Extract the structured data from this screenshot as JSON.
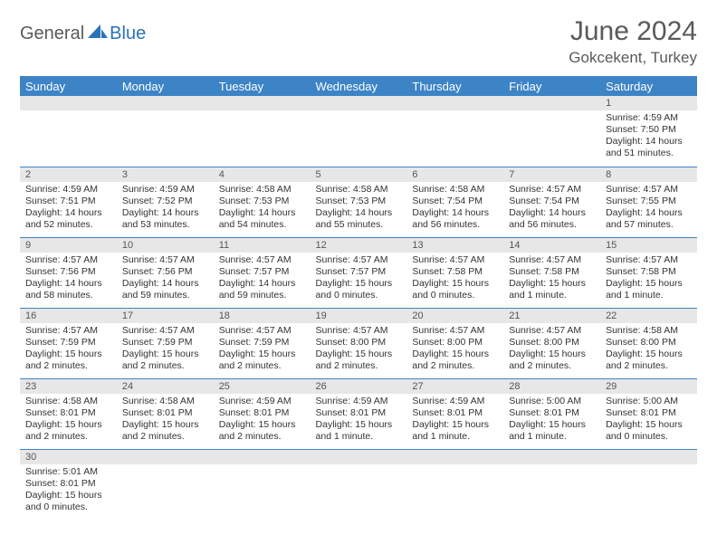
{
  "logo": {
    "general": "General",
    "blue": "Blue",
    "sail_color": "#2a73b8"
  },
  "title": "June 2024",
  "location": "Gokcekent, Turkey",
  "colors": {
    "header_bg": "#3d84c6",
    "header_text": "#ffffff",
    "daynum_bg": "#e7e7e7",
    "row_divider": "#3d84c6",
    "text": "#333333",
    "title_text": "#5a5a5a"
  },
  "day_headers": [
    "Sunday",
    "Monday",
    "Tuesday",
    "Wednesday",
    "Thursday",
    "Friday",
    "Saturday"
  ],
  "weeks": [
    [
      {
        "n": "",
        "sr": "",
        "ss": "",
        "dl": ""
      },
      {
        "n": "",
        "sr": "",
        "ss": "",
        "dl": ""
      },
      {
        "n": "",
        "sr": "",
        "ss": "",
        "dl": ""
      },
      {
        "n": "",
        "sr": "",
        "ss": "",
        "dl": ""
      },
      {
        "n": "",
        "sr": "",
        "ss": "",
        "dl": ""
      },
      {
        "n": "",
        "sr": "",
        "ss": "",
        "dl": ""
      },
      {
        "n": "1",
        "sr": "Sunrise: 4:59 AM",
        "ss": "Sunset: 7:50 PM",
        "dl": "Daylight: 14 hours and 51 minutes."
      }
    ],
    [
      {
        "n": "2",
        "sr": "Sunrise: 4:59 AM",
        "ss": "Sunset: 7:51 PM",
        "dl": "Daylight: 14 hours and 52 minutes."
      },
      {
        "n": "3",
        "sr": "Sunrise: 4:59 AM",
        "ss": "Sunset: 7:52 PM",
        "dl": "Daylight: 14 hours and 53 minutes."
      },
      {
        "n": "4",
        "sr": "Sunrise: 4:58 AM",
        "ss": "Sunset: 7:53 PM",
        "dl": "Daylight: 14 hours and 54 minutes."
      },
      {
        "n": "5",
        "sr": "Sunrise: 4:58 AM",
        "ss": "Sunset: 7:53 PM",
        "dl": "Daylight: 14 hours and 55 minutes."
      },
      {
        "n": "6",
        "sr": "Sunrise: 4:58 AM",
        "ss": "Sunset: 7:54 PM",
        "dl": "Daylight: 14 hours and 56 minutes."
      },
      {
        "n": "7",
        "sr": "Sunrise: 4:57 AM",
        "ss": "Sunset: 7:54 PM",
        "dl": "Daylight: 14 hours and 56 minutes."
      },
      {
        "n": "8",
        "sr": "Sunrise: 4:57 AM",
        "ss": "Sunset: 7:55 PM",
        "dl": "Daylight: 14 hours and 57 minutes."
      }
    ],
    [
      {
        "n": "9",
        "sr": "Sunrise: 4:57 AM",
        "ss": "Sunset: 7:56 PM",
        "dl": "Daylight: 14 hours and 58 minutes."
      },
      {
        "n": "10",
        "sr": "Sunrise: 4:57 AM",
        "ss": "Sunset: 7:56 PM",
        "dl": "Daylight: 14 hours and 59 minutes."
      },
      {
        "n": "11",
        "sr": "Sunrise: 4:57 AM",
        "ss": "Sunset: 7:57 PM",
        "dl": "Daylight: 14 hours and 59 minutes."
      },
      {
        "n": "12",
        "sr": "Sunrise: 4:57 AM",
        "ss": "Sunset: 7:57 PM",
        "dl": "Daylight: 15 hours and 0 minutes."
      },
      {
        "n": "13",
        "sr": "Sunrise: 4:57 AM",
        "ss": "Sunset: 7:58 PM",
        "dl": "Daylight: 15 hours and 0 minutes."
      },
      {
        "n": "14",
        "sr": "Sunrise: 4:57 AM",
        "ss": "Sunset: 7:58 PM",
        "dl": "Daylight: 15 hours and 1 minute."
      },
      {
        "n": "15",
        "sr": "Sunrise: 4:57 AM",
        "ss": "Sunset: 7:58 PM",
        "dl": "Daylight: 15 hours and 1 minute."
      }
    ],
    [
      {
        "n": "16",
        "sr": "Sunrise: 4:57 AM",
        "ss": "Sunset: 7:59 PM",
        "dl": "Daylight: 15 hours and 2 minutes."
      },
      {
        "n": "17",
        "sr": "Sunrise: 4:57 AM",
        "ss": "Sunset: 7:59 PM",
        "dl": "Daylight: 15 hours and 2 minutes."
      },
      {
        "n": "18",
        "sr": "Sunrise: 4:57 AM",
        "ss": "Sunset: 7:59 PM",
        "dl": "Daylight: 15 hours and 2 minutes."
      },
      {
        "n": "19",
        "sr": "Sunrise: 4:57 AM",
        "ss": "Sunset: 8:00 PM",
        "dl": "Daylight: 15 hours and 2 minutes."
      },
      {
        "n": "20",
        "sr": "Sunrise: 4:57 AM",
        "ss": "Sunset: 8:00 PM",
        "dl": "Daylight: 15 hours and 2 minutes."
      },
      {
        "n": "21",
        "sr": "Sunrise: 4:57 AM",
        "ss": "Sunset: 8:00 PM",
        "dl": "Daylight: 15 hours and 2 minutes."
      },
      {
        "n": "22",
        "sr": "Sunrise: 4:58 AM",
        "ss": "Sunset: 8:00 PM",
        "dl": "Daylight: 15 hours and 2 minutes."
      }
    ],
    [
      {
        "n": "23",
        "sr": "Sunrise: 4:58 AM",
        "ss": "Sunset: 8:01 PM",
        "dl": "Daylight: 15 hours and 2 minutes."
      },
      {
        "n": "24",
        "sr": "Sunrise: 4:58 AM",
        "ss": "Sunset: 8:01 PM",
        "dl": "Daylight: 15 hours and 2 minutes."
      },
      {
        "n": "25",
        "sr": "Sunrise: 4:59 AM",
        "ss": "Sunset: 8:01 PM",
        "dl": "Daylight: 15 hours and 2 minutes."
      },
      {
        "n": "26",
        "sr": "Sunrise: 4:59 AM",
        "ss": "Sunset: 8:01 PM",
        "dl": "Daylight: 15 hours and 1 minute."
      },
      {
        "n": "27",
        "sr": "Sunrise: 4:59 AM",
        "ss": "Sunset: 8:01 PM",
        "dl": "Daylight: 15 hours and 1 minute."
      },
      {
        "n": "28",
        "sr": "Sunrise: 5:00 AM",
        "ss": "Sunset: 8:01 PM",
        "dl": "Daylight: 15 hours and 1 minute."
      },
      {
        "n": "29",
        "sr": "Sunrise: 5:00 AM",
        "ss": "Sunset: 8:01 PM",
        "dl": "Daylight: 15 hours and 0 minutes."
      }
    ],
    [
      {
        "n": "30",
        "sr": "Sunrise: 5:01 AM",
        "ss": "Sunset: 8:01 PM",
        "dl": "Daylight: 15 hours and 0 minutes."
      },
      {
        "n": "",
        "sr": "",
        "ss": "",
        "dl": ""
      },
      {
        "n": "",
        "sr": "",
        "ss": "",
        "dl": ""
      },
      {
        "n": "",
        "sr": "",
        "ss": "",
        "dl": ""
      },
      {
        "n": "",
        "sr": "",
        "ss": "",
        "dl": ""
      },
      {
        "n": "",
        "sr": "",
        "ss": "",
        "dl": ""
      },
      {
        "n": "",
        "sr": "",
        "ss": "",
        "dl": ""
      }
    ]
  ]
}
